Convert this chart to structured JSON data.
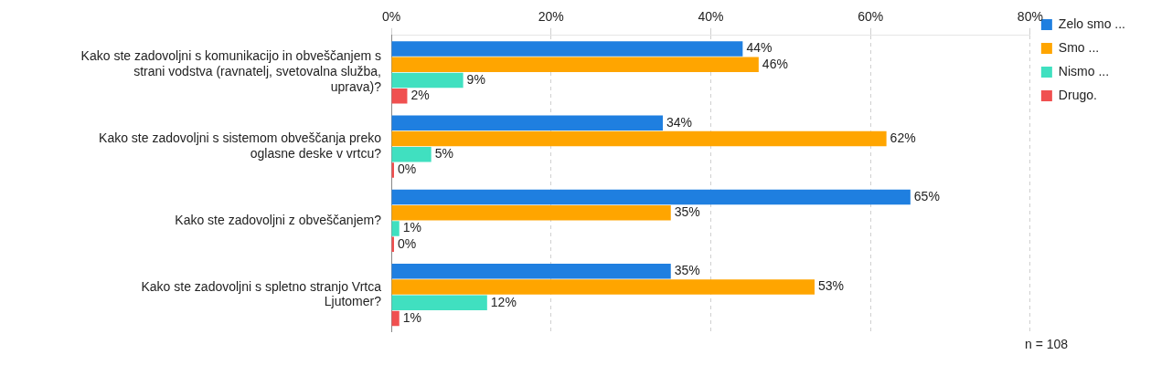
{
  "chart_data": {
    "type": "bar",
    "orientation": "horizontal",
    "categories": [
      "Kako ste zadovoljni s komunikacijo in obveščanjem s strani vodstva (ravnatelj, svetovalna služba, uprava)?",
      "Kako ste zadovoljni s sistemom obveščanja preko oglasne deske v vrtcu?",
      "Kako ste zadovoljni z obveščanjem?",
      "Kako ste zadovoljni s spletno stranjo Vrtca Ljutomer?"
    ],
    "series": [
      {
        "name": "Zelo smo ...",
        "color": "#1f7fe0",
        "values": [
          44,
          34,
          65,
          35
        ],
        "value_labels": [
          "44%",
          "34%",
          "65%",
          "35%"
        ]
      },
      {
        "name": "Smo ...",
        "color": "#ffa500",
        "values": [
          46,
          62,
          35,
          53
        ],
        "value_labels": [
          "46%",
          "62%",
          "35%",
          "53%"
        ]
      },
      {
        "name": "Nismo ...",
        "color": "#40e0c0",
        "values": [
          9,
          5,
          1,
          12
        ],
        "value_labels": [
          "9%",
          "5%",
          "1%",
          "12%"
        ]
      },
      {
        "name": "Drugo.",
        "color": "#f05050",
        "values": [
          2,
          0,
          0,
          1
        ],
        "value_labels": [
          "2%",
          "0%",
          "0%",
          "1%"
        ]
      }
    ],
    "xlim": [
      0,
      80
    ],
    "xticks": [
      {
        "value": 0,
        "label": "0%"
      },
      {
        "value": 20,
        "label": "20%"
      },
      {
        "value": 40,
        "label": "40%"
      },
      {
        "value": 60,
        "label": "60%"
      },
      {
        "value": 80,
        "label": "80%"
      }
    ],
    "grid": "x",
    "legend": "right",
    "annotations": [
      "n = 108"
    ]
  }
}
